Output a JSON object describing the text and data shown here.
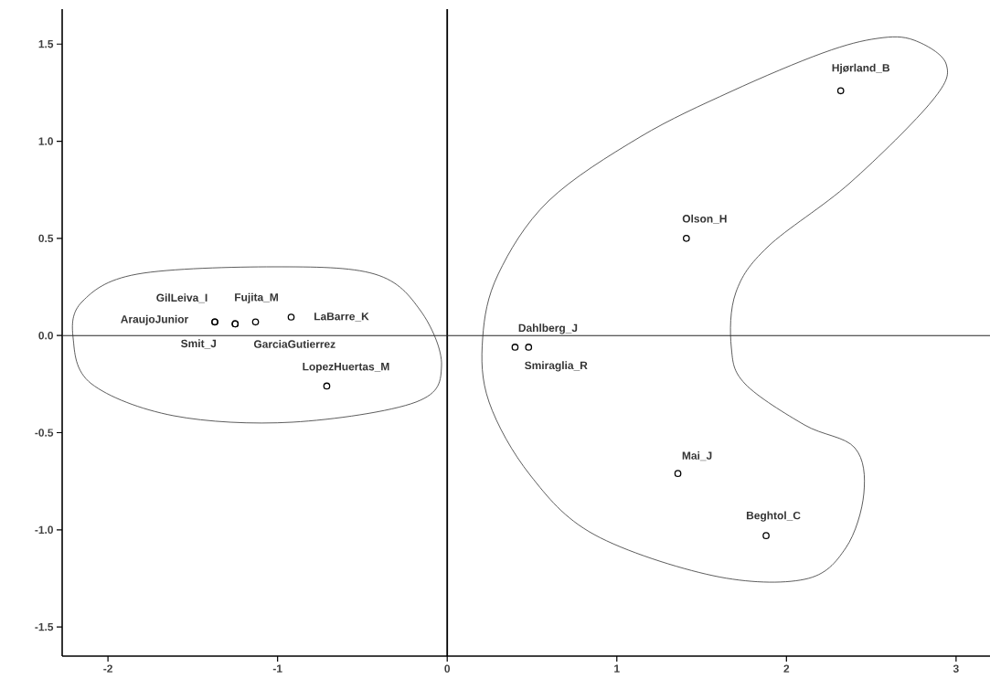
{
  "chart_data": {
    "type": "scatter",
    "marker": "circle",
    "color": "#000000",
    "grid": false,
    "x": [
      2.32,
      1.41,
      0.4,
      0.48,
      1.36,
      1.88,
      -1.37,
      -1.37,
      -1.13,
      -1.25,
      -1.25,
      -0.92,
      -0.71
    ],
    "values": [
      1.26,
      0.5,
      -0.06,
      -0.06,
      -0.71,
      -1.03,
      0.07,
      0.07,
      0.07,
      0.06,
      0.06,
      0.095,
      -0.26
    ],
    "xlim": [
      -2.27,
      3.2
    ],
    "ylim": [
      -1.65,
      1.68
    ],
    "xticks": [
      -2,
      -1,
      0,
      1,
      2,
      3
    ],
    "yticks": [
      {
        "value": -1.5,
        "label": "-1.5"
      },
      {
        "value": -1,
        "label": "-1.0"
      },
      {
        "value": -0.5,
        "label": "-0.5"
      },
      {
        "value": 0,
        "label": "0.0"
      },
      {
        "value": 0.5,
        "label": "0.5"
      },
      {
        "value": 1,
        "label": "1.0"
      },
      {
        "value": 1.5,
        "label": "1.5"
      }
    ],
    "ref_lines": [
      {
        "axis": "x",
        "value": 0
      },
      {
        "axis": "y",
        "value": 0
      }
    ],
    "annotations": [
      {
        "text": "Hjørland_B",
        "x": 2.32,
        "y": 1.26
      },
      {
        "text": "Olson_H",
        "x": 1.41,
        "y": 0.5
      },
      {
        "text": "Dahlberg_J",
        "x": 0.4,
        "y": -0.06
      },
      {
        "text": "Smiraglia_R",
        "x": 0.48,
        "y": -0.06
      },
      {
        "text": "Mai_J",
        "x": 1.36,
        "y": -0.71
      },
      {
        "text": "Beghtol_C",
        "x": 1.88,
        "y": -1.03
      },
      {
        "text": "AraujoJunior",
        "x": -1.37,
        "y": 0.07
      },
      {
        "text": "GilLeiva_I",
        "x": -1.37,
        "y": 0.07
      },
      {
        "text": "Fujita_M",
        "x": -1.13,
        "y": 0.07
      },
      {
        "text": "Smit_J",
        "x": -1.25,
        "y": 0.06
      },
      {
        "text": "GarciaGutierrez",
        "x": -1.25,
        "y": 0.06
      },
      {
        "text": "LaBarre_K",
        "x": -0.92,
        "y": 0.095
      },
      {
        "text": "LopezHuertas_M",
        "x": -0.71,
        "y": -0.26
      }
    ]
  }
}
